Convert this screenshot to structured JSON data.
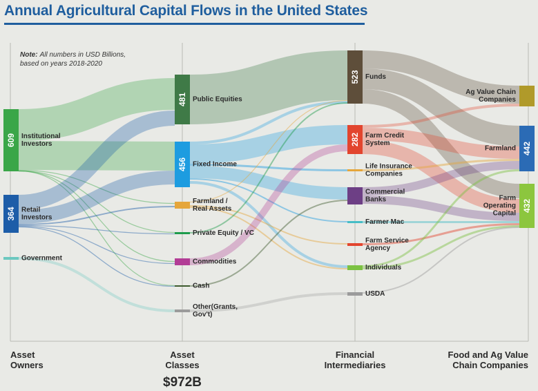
{
  "title": "Annual Agricultural Capital Flows in the United States",
  "note_bold": "Note:",
  "note_line1": "All numbers in USD Billions,",
  "note_line2": "based on years 2018-2020",
  "columns": [
    {
      "lines": [
        "Asset",
        "Owners"
      ]
    },
    {
      "lines": [
        "Asset",
        "Classes"
      ]
    },
    {
      "lines": [
        "Financial",
        "Intermediaries"
      ]
    },
    {
      "lines": [
        "Food and Ag Value",
        "Chain Companies"
      ]
    }
  ],
  "total": "$972B",
  "nodes": [
    {
      "id": "inst",
      "col": 0,
      "lines": [
        "Institutional",
        "Investors"
      ],
      "value": "609",
      "color": "#3aa648"
    },
    {
      "id": "retail",
      "col": 0,
      "lines": [
        "Retail",
        "Investors"
      ],
      "value": "364",
      "color": "#1d5da8"
    },
    {
      "id": "gov",
      "col": 0,
      "lines": [
        "Government"
      ],
      "value": "",
      "color": "#6cc8c0"
    },
    {
      "id": "pubeq",
      "col": 1,
      "lines": [
        "Public Equities"
      ],
      "value": "481",
      "color": "#3f7a47"
    },
    {
      "id": "fixed",
      "col": 1,
      "lines": [
        "Fixed Income"
      ],
      "value": "456",
      "color": "#1d9ce0"
    },
    {
      "id": "farmre",
      "col": 1,
      "lines": [
        "Farmland /",
        "Real Assets"
      ],
      "value": "",
      "color": "#e5a63b"
    },
    {
      "id": "pevc",
      "col": 1,
      "lines": [
        "Private Equity / VC"
      ],
      "value": "",
      "color": "#1e9c4c"
    },
    {
      "id": "commod",
      "col": 1,
      "lines": [
        "Commodities"
      ],
      "value": "",
      "color": "#b23d96"
    },
    {
      "id": "cash",
      "col": 1,
      "lines": [
        "Cash"
      ],
      "value": "",
      "color": "#3d5a2e"
    },
    {
      "id": "other",
      "col": 1,
      "lines": [
        "Other(Grants,",
        "Gov't)"
      ],
      "value": "",
      "color": "#9b9b9b"
    },
    {
      "id": "funds",
      "col": 2,
      "lines": [
        "Funds"
      ],
      "value": "523",
      "color": "#5e4e3a"
    },
    {
      "id": "fcs",
      "col": 2,
      "lines": [
        "Farm Credit",
        "System"
      ],
      "value": "282",
      "color": "#e2452e"
    },
    {
      "id": "life",
      "col": 2,
      "lines": [
        "Life Insurance",
        "Companies"
      ],
      "value": "",
      "color": "#e5a63b"
    },
    {
      "id": "banks",
      "col": 2,
      "lines": [
        "Commercial",
        "Banks"
      ],
      "value": "",
      "color": "#6d3f85"
    },
    {
      "id": "fmac",
      "col": 2,
      "lines": [
        "Farmer Mac"
      ],
      "value": "",
      "color": "#46bdc6"
    },
    {
      "id": "fsa",
      "col": 2,
      "lines": [
        "Farm Service",
        "Agency"
      ],
      "value": "",
      "color": "#e2452e"
    },
    {
      "id": "indiv",
      "col": 2,
      "lines": [
        "Individuals"
      ],
      "value": "",
      "color": "#7cc242"
    },
    {
      "id": "usda",
      "col": 2,
      "lines": [
        "USDA"
      ],
      "value": "",
      "color": "#9b9b9b"
    },
    {
      "id": "agvc",
      "col": 3,
      "lines": [
        "Ag Value Chain",
        "Companies"
      ],
      "value": "",
      "color": "#b09a2a"
    },
    {
      "id": "farmland",
      "col": 3,
      "lines": [
        "Farmland"
      ],
      "value": "442",
      "color": "#2b6bb5"
    },
    {
      "id": "farmop",
      "col": 3,
      "lines": [
        "Farm",
        "Operating",
        "Capital"
      ],
      "value": "432",
      "color": "#8cc63e"
    }
  ]
}
